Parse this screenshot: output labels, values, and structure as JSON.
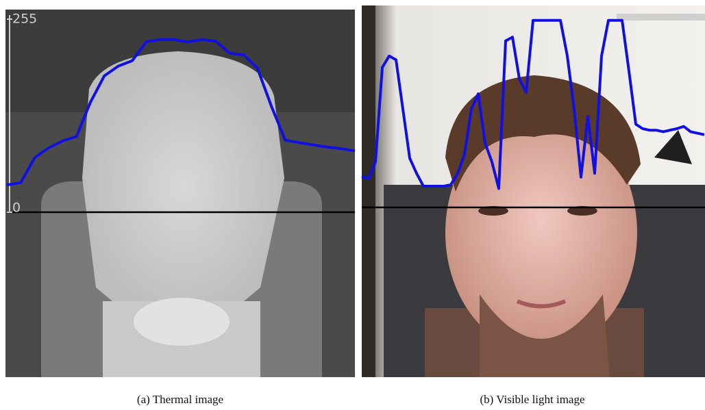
{
  "figure": {
    "panels": [
      {
        "caption": "(a) Thermal image",
        "ylim": [
          0,
          255
        ],
        "yticks": [
          0,
          255
        ],
        "color": "#1010e0",
        "profile": [
          36,
          39,
          72,
          85,
          94,
          100,
          145,
          180,
          193,
          200,
          225,
          228,
          228,
          225,
          228,
          226,
          210,
          208,
          190,
          140,
          95,
          92,
          89,
          86,
          84,
          81
        ]
      },
      {
        "caption": "(b) Visible light image",
        "ylim": [
          0,
          255
        ],
        "color": "#1010e0",
        "profile": [
          41,
          38,
          60,
          185,
          200,
          195,
          130,
          65,
          45,
          28,
          28,
          28,
          28,
          30,
          45,
          70,
          130,
          150,
          85,
          60,
          25,
          220,
          225,
          170,
          152,
          247,
          247,
          247,
          247,
          247,
          200,
          130,
          40,
          120,
          45,
          200,
          247,
          247,
          247,
          180,
          110,
          104,
          102,
          102,
          100,
          102,
          104,
          107,
          100,
          98,
          96
        ]
      }
    ]
  }
}
